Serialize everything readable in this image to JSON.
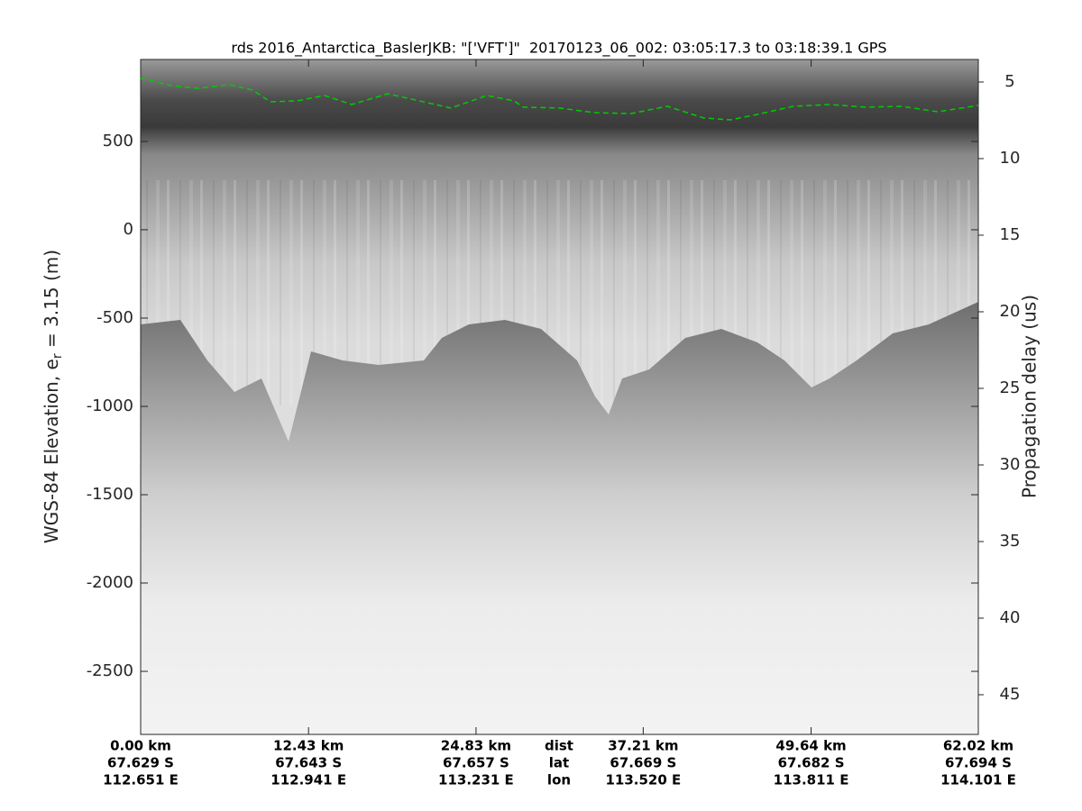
{
  "chart_data": {
    "type": "echogram",
    "title": "rds 2016_Antarctica_BaslerJKB: \"['VFT']\"  20170123_06_002: 03:05:17.3 to 03:18:39.1 GPS",
    "y_label": [
      "WGS-84 Elevation, e",
      "r",
      " = 3.15 (m)"
    ],
    "y2_label": "Propagation delay (us)",
    "xlim": [
      0,
      62.02
    ],
    "xticks": [
      {
        "value": 0,
        "label": "0.00 km"
      },
      {
        "value": 12.43,
        "label": "12.43 km"
      },
      {
        "value": 24.83,
        "label": "24.83 km"
      },
      {
        "value": 37.21,
        "label": "37.21 km"
      },
      {
        "value": 49.64,
        "label": "49.64 km"
      },
      {
        "value": 62.02,
        "label": "62.02 km"
      }
    ],
    "xtick_lat": [
      "67.629 S",
      "67.643 S",
      "67.657 S",
      "67.669 S",
      "67.682 S",
      "67.694 S"
    ],
    "xtick_lon": [
      "112.651 E",
      "112.941 E",
      "113.231 E",
      "113.520 E",
      "113.811 E",
      "114.101 E"
    ],
    "xtick_rows": [
      "dist",
      "lat",
      "lon"
    ],
    "ylim": [
      -2857,
      964
    ],
    "yticks": [
      500,
      0,
      -500,
      -1000,
      -1500,
      -2000,
      -2500
    ],
    "y2lim": [
      47.59,
      3.53
    ],
    "y2ticks": [
      5,
      10,
      15,
      20,
      25,
      30,
      35,
      40,
      45
    ],
    "series": [
      {
        "color": "#00cc00",
        "x": [
          0,
          2.27,
          4.27,
          6.61,
          8.28,
          9.61,
          11.62,
          13.62,
          15.62,
          18.29,
          20.96,
          22.97,
          25.64,
          27.64,
          28.31,
          30.98,
          33.65,
          36.32,
          39.0,
          41.67,
          43.66,
          45.66,
          48.33,
          51.0,
          53.67,
          56.35,
          59.02,
          62.02
        ],
        "values": [
          857,
          816,
          801,
          821,
          791,
          724,
          730,
          760,
          709,
          770,
          724,
          689,
          760,
          730,
          694,
          689,
          663,
          658,
          699,
          633,
          622,
          653,
          699,
          709,
          694,
          699,
          668,
          704
        ]
      }
    ]
  }
}
